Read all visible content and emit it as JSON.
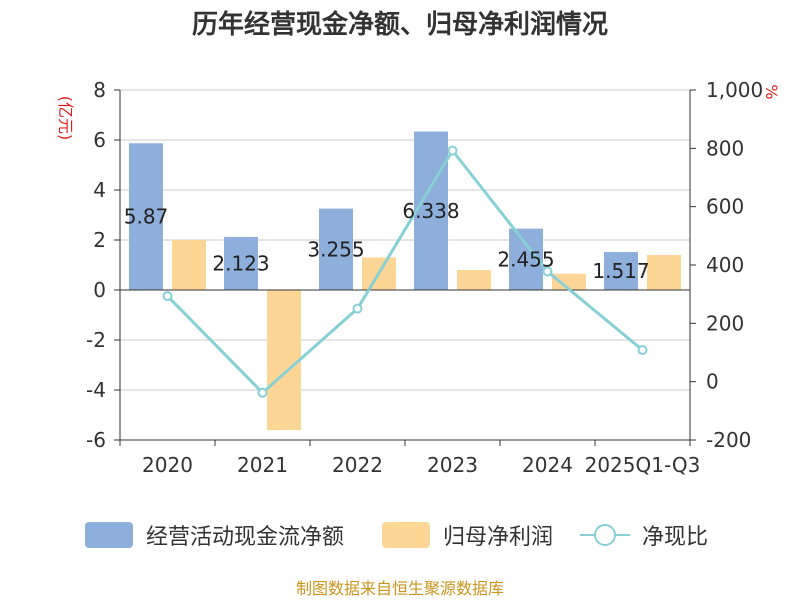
{
  "chart_data": {
    "type": "bar",
    "title": "历年经营现金净额、归母净利润情况",
    "categories": [
      "2020",
      "2021",
      "2022",
      "2023",
      "2024",
      "2025Q1-Q3"
    ],
    "series": [
      {
        "name": "经营活动现金流净额",
        "type": "bar",
        "axis": "left",
        "color": "#8eaedb",
        "values": [
          5.87,
          2.123,
          3.255,
          6.338,
          2.455,
          1.517
        ],
        "labels": [
          "5.87",
          "2.123",
          "3.255",
          "6.338",
          "2.455",
          "1.517"
        ]
      },
      {
        "name": "归母净利润",
        "type": "bar",
        "axis": "left",
        "color": "#fdd696",
        "values": [
          2.0,
          -5.6,
          1.3,
          0.8,
          0.65,
          1.4
        ]
      },
      {
        "name": "净现比",
        "type": "line",
        "axis": "right",
        "color": "#86d0d6",
        "values": [
          293.5,
          -37.9,
          250.4,
          792.3,
          377.7,
          108.4
        ]
      }
    ],
    "y_left": {
      "unit": "(亿元)",
      "min": -6,
      "max": 8,
      "ticks": [
        8,
        6,
        4,
        2,
        0,
        -2,
        -4,
        -6
      ],
      "tick_labels": [
        "8",
        "6",
        "4",
        "2",
        "0",
        "-2",
        "-4",
        "-6"
      ]
    },
    "y_right": {
      "unit": "%",
      "min": -200,
      "max": 1000,
      "ticks": [
        1000,
        800,
        600,
        400,
        200,
        0,
        -200
      ],
      "tick_labels": [
        "1,000",
        "800",
        "600",
        "400",
        "200",
        "0",
        "-200"
      ]
    },
    "grid": true,
    "legend_position": "bottom"
  },
  "source": "制图数据来自恒生聚源数据库"
}
